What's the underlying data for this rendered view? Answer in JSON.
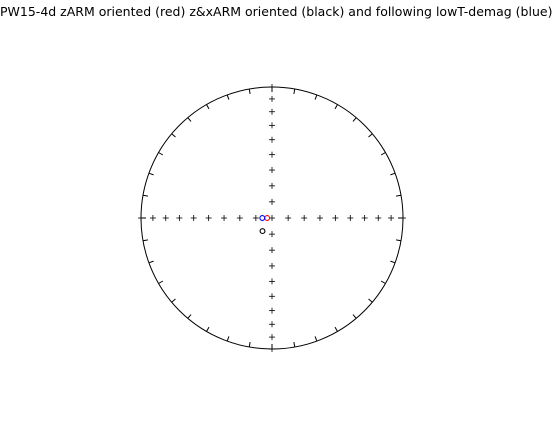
{
  "figure": {
    "title": "PW15-4d zARM oriented (red) z&xARM oriented (black) and following lowT-demag (blue)"
  },
  "chart_data": {
    "type": "scatter",
    "projection": "equal-area-stereonet",
    "title": "PW15-4d zARM oriented (red) z&xARM oriented (black) and following lowT-demag (blue)",
    "grid": true,
    "inclination_crosses_per_axis": 9,
    "azimuth_tick_spacing_deg": 10,
    "series": [
      {
        "color": "#ff0000",
        "marker": "open-circle",
        "points": [
          {
            "dec": 270,
            "inc": 87
          }
        ]
      },
      {
        "color": "#000000",
        "marker": "open-circle",
        "points": [
          {
            "dec": 216,
            "inc": 80
          }
        ]
      },
      {
        "color": "#0000ff",
        "marker": "open-circle",
        "points": [
          {
            "dec": 270,
            "inc": 84
          }
        ]
      }
    ]
  }
}
